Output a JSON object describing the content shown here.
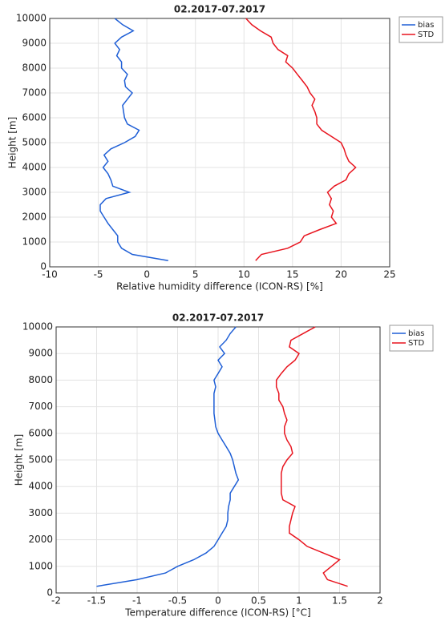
{
  "chart_data": [
    {
      "type": "line",
      "title": "02.2017-07.2017",
      "xlabel": "Relative humidity difference (ICON-RS) [%]",
      "ylabel": "Height [m]",
      "xlim": [
        -10,
        25
      ],
      "xticks": [
        -10,
        -5,
        0,
        5,
        10,
        15,
        20,
        25
      ],
      "ylim": [
        0,
        10000
      ],
      "yticks": [
        0,
        1000,
        2000,
        3000,
        4000,
        5000,
        6000,
        7000,
        8000,
        9000,
        10000
      ],
      "grid": true,
      "legend": "outside-upper-right",
      "y": [
        250,
        500,
        750,
        1000,
        1250,
        1500,
        1750,
        2000,
        2250,
        2500,
        2750,
        3000,
        3250,
        3500,
        3750,
        4000,
        4250,
        4500,
        4750,
        5000,
        5250,
        5500,
        5750,
        6000,
        6250,
        6500,
        6750,
        7000,
        7250,
        7500,
        7750,
        8000,
        8250,
        8500,
        8750,
        9000,
        9250,
        9500,
        9750,
        10000
      ],
      "series": [
        {
          "name": "bias",
          "color": "#1f5fd6",
          "values": [
            2.2,
            -1.5,
            -2.6,
            -3.0,
            -3.0,
            -3.5,
            -4.0,
            -4.4,
            -4.8,
            -4.8,
            -4.2,
            -1.8,
            -3.5,
            -3.7,
            -4.0,
            -4.5,
            -4.0,
            -4.4,
            -3.7,
            -2.3,
            -1.2,
            -0.8,
            -2.0,
            -2.3,
            -2.4,
            -2.5,
            -2.0,
            -1.5,
            -2.2,
            -2.3,
            -2.0,
            -2.6,
            -2.6,
            -3.1,
            -2.8,
            -3.3,
            -2.6,
            -1.4,
            -2.5,
            -3.3
          ]
        },
        {
          "name": "STD",
          "color": "#e8141e",
          "values": [
            11.2,
            11.8,
            14.5,
            15.8,
            16.2,
            17.8,
            19.5,
            19.0,
            19.2,
            18.8,
            19.0,
            18.6,
            19.3,
            20.5,
            20.8,
            21.5,
            20.8,
            20.5,
            20.3,
            20.0,
            19.0,
            18.0,
            17.5,
            17.5,
            17.3,
            17.0,
            17.3,
            16.8,
            16.5,
            16.0,
            15.5,
            15.0,
            14.3,
            14.5,
            13.5,
            13.0,
            12.8,
            11.7,
            10.8,
            10.2
          ]
        }
      ]
    },
    {
      "type": "line",
      "title": "02.2017-07.2017",
      "xlabel": "Temperature difference (ICON-RS) [°C]",
      "ylabel": "Height [m]",
      "xlim": [
        -2,
        2
      ],
      "xticks": [
        -2,
        -1.5,
        -1,
        -0.5,
        0,
        0.5,
        1,
        1.5,
        2
      ],
      "ylim": [
        0,
        10000
      ],
      "yticks": [
        0,
        1000,
        2000,
        3000,
        4000,
        5000,
        6000,
        7000,
        8000,
        9000,
        10000
      ],
      "grid": true,
      "legend": "outside-upper-right",
      "y": [
        250,
        500,
        750,
        1000,
        1250,
        1500,
        1750,
        2000,
        2250,
        2500,
        2750,
        3000,
        3250,
        3500,
        3750,
        4000,
        4250,
        4500,
        4750,
        5000,
        5250,
        5500,
        5750,
        6000,
        6250,
        6500,
        6750,
        7000,
        7250,
        7500,
        7750,
        8000,
        8250,
        8500,
        8750,
        9000,
        9250,
        9500,
        9750,
        10000
      ],
      "series": [
        {
          "name": "bias",
          "color": "#1f5fd6",
          "values": [
            -1.5,
            -1.0,
            -0.65,
            -0.5,
            -0.3,
            -0.15,
            -0.05,
            0.0,
            0.05,
            0.1,
            0.12,
            0.12,
            0.13,
            0.15,
            0.15,
            0.2,
            0.25,
            0.22,
            0.2,
            0.18,
            0.15,
            0.1,
            0.05,
            0.0,
            -0.03,
            -0.04,
            -0.05,
            -0.05,
            -0.05,
            -0.05,
            -0.03,
            -0.05,
            0.0,
            0.05,
            0.0,
            0.08,
            0.02,
            0.1,
            0.15,
            0.22
          ]
        },
        {
          "name": "STD",
          "color": "#e8141e",
          "values": [
            1.6,
            1.35,
            1.3,
            1.4,
            1.5,
            1.3,
            1.1,
            1.0,
            0.88,
            0.88,
            0.9,
            0.92,
            0.95,
            0.8,
            0.78,
            0.78,
            0.78,
            0.78,
            0.8,
            0.85,
            0.92,
            0.9,
            0.85,
            0.82,
            0.82,
            0.85,
            0.82,
            0.8,
            0.75,
            0.75,
            0.72,
            0.72,
            0.78,
            0.85,
            0.95,
            1.0,
            0.88,
            0.9,
            1.05,
            1.2
          ]
        }
      ]
    }
  ]
}
